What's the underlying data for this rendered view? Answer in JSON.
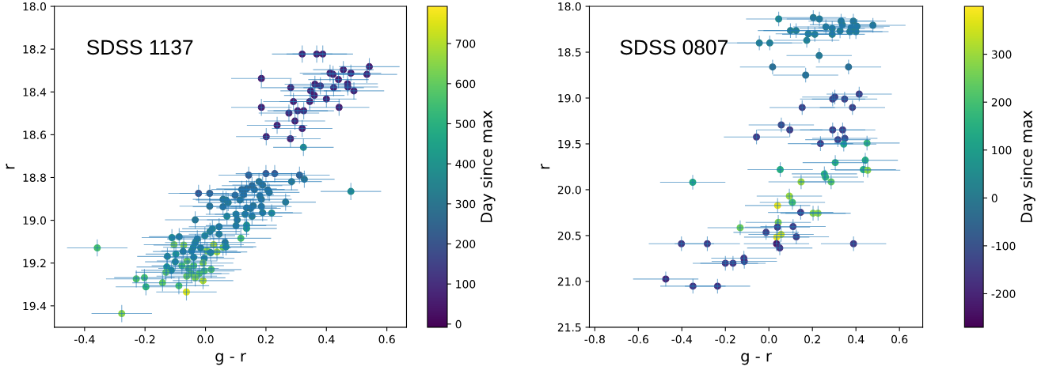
{
  "chart_data": [
    {
      "type": "scatter",
      "xlabel": "g - r",
      "ylabel": "r",
      "clabel": "Day since max",
      "annotations": [
        "SDSS 1137"
      ],
      "marker": "circle",
      "grid": false,
      "xlim": [
        -0.5,
        0.665
      ],
      "ylim": [
        19.5,
        18.0
      ],
      "xticks": [
        -0.4,
        -0.2,
        {
          "value": 0,
          "label": "0.0"
        },
        0.2,
        0.4,
        0.6
      ],
      "yticks": [
        {
          "value": 18,
          "label": "18.0"
        },
        18.2,
        18.4,
        18.6,
        18.8,
        {
          "value": 19,
          "label": "19.0"
        },
        19.2,
        19.4
      ],
      "clim": [
        -8,
        793
      ],
      "cticks": [
        0,
        100,
        200,
        300,
        400,
        500,
        600,
        700
      ],
      "x": [
        0.32,
        0.368,
        0.388,
        0.542,
        0.534,
        0.456,
        0.412,
        0.422,
        0.481,
        0.185,
        0.44,
        0.362,
        0.38,
        0.282,
        0.424,
        0.47,
        0.471,
        0.491,
        0.348,
        0.36,
        0.4,
        0.291,
        0.345,
        0.185,
        0.442,
        0.305,
        0.325,
        0.276,
        0.296,
        0.237,
        0.32,
        0.201,
        0.281,
        0.324,
        0.143,
        0.2,
        0.229,
        0.311,
        0.327,
        0.285,
        0.481,
        0.177,
        0.154,
        0.189,
        0.12,
        0.136,
        0.162,
        0.206,
        0.211,
        -0.023,
        0.014,
        0.098,
        0.126,
        0.18,
        0.058,
        0.068,
        0.075,
        0.114,
        0.185,
        0.265,
        0.014,
        0.058,
        0.136,
        0.149,
        0.158,
        0.185,
        0.189,
        0.219,
        0.101,
        0.131,
        0.154,
        0.071,
        -0.034,
        0.105,
        0.101,
        0.136,
        0.136,
        0.023,
        0.045,
        0.015,
        -0.002,
        0.045,
        0.117,
        -0.027,
        -0.111,
        -0.087,
        -0.034,
        0.065,
        -0.104,
        -0.072,
        0.027,
        -0.04,
        -0.016,
        0.058,
        0.068,
        -0.358,
        -0.074,
        -0.046,
        0.005,
        0.038,
        0.017,
        -0.098,
        -0.126,
        -0.039,
        -0.004,
        -0.1,
        -0.061,
        -0.008,
        -0.128,
        -0.078,
        -0.039,
        -0.113,
        -0.131,
        -0.056,
        -0.004,
        0.019,
        -0.047,
        -0.021,
        -0.062,
        -0.034,
        -0.229,
        -0.202,
        -0.197,
        -0.142,
        -0.088,
        -0.008,
        -0.063,
        -0.277
      ],
      "values": [
        18.223,
        18.223,
        18.223,
        18.282,
        18.318,
        18.296,
        18.312,
        18.318,
        18.312,
        18.337,
        18.342,
        18.364,
        18.372,
        18.38,
        18.38,
        18.362,
        18.377,
        18.395,
        18.395,
        18.416,
        18.433,
        18.445,
        18.445,
        18.472,
        18.472,
        18.488,
        18.488,
        18.499,
        18.536,
        18.556,
        18.571,
        18.609,
        18.619,
        18.659,
        18.789,
        18.782,
        18.782,
        18.789,
        18.808,
        18.819,
        18.865,
        18.819,
        18.838,
        18.835,
        18.856,
        18.853,
        18.856,
        18.858,
        18.87,
        18.874,
        18.874,
        18.883,
        18.88,
        18.886,
        18.902,
        18.905,
        18.917,
        18.905,
        18.902,
        18.915,
        18.934,
        18.937,
        18.942,
        18.944,
        18.932,
        18.936,
        18.964,
        18.966,
        18.972,
        18.972,
        18.981,
        18.981,
        18.998,
        18.998,
        19.025,
        19.023,
        19.038,
        19.04,
        19.03,
        19.052,
        19.072,
        19.065,
        19.084,
        19.087,
        19.081,
        19.077,
        19.104,
        19.104,
        19.114,
        19.116,
        19.114,
        19.126,
        19.129,
        19.126,
        19.124,
        19.129,
        19.146,
        19.143,
        19.143,
        19.148,
        19.151,
        19.158,
        19.169,
        19.173,
        19.178,
        19.194,
        19.19,
        19.2,
        19.218,
        19.212,
        19.212,
        19.234,
        19.243,
        19.225,
        19.237,
        19.23,
        19.249,
        19.249,
        19.261,
        19.269,
        19.274,
        19.268,
        19.311,
        19.292,
        19.306,
        19.282,
        19.335,
        19.436
      ],
      "cvalues": [
        60,
        60,
        60,
        60,
        60,
        60,
        60,
        60,
        60,
        60,
        60,
        60,
        60,
        60,
        60,
        60,
        60,
        60,
        60,
        60,
        60,
        60,
        60,
        60,
        60,
        60,
        60,
        60,
        60,
        60,
        60,
        60,
        60,
        380,
        220,
        200,
        200,
        230,
        300,
        320,
        380,
        300,
        260,
        280,
        260,
        260,
        270,
        280,
        300,
        200,
        230,
        250,
        260,
        290,
        300,
        320,
        320,
        300,
        300,
        320,
        290,
        290,
        300,
        300,
        300,
        300,
        330,
        380,
        330,
        330,
        330,
        370,
        310,
        310,
        330,
        400,
        420,
        360,
        320,
        340,
        370,
        330,
        560,
        330,
        380,
        330,
        350,
        320,
        650,
        660,
        700,
        380,
        350,
        640,
        380,
        560,
        330,
        350,
        650,
        680,
        370,
        420,
        360,
        360,
        360,
        370,
        620,
        650,
        450,
        560,
        580,
        380,
        600,
        600,
        580,
        580,
        600,
        580,
        620,
        640,
        570,
        560,
        520,
        600,
        560,
        700,
        750,
        650
      ],
      "xerrors": [
        0.1,
        0.1,
        0.1,
        0.1,
        0.1,
        0.1,
        0.1,
        0.1,
        0.1,
        0.1,
        0.1,
        0.1,
        0.1,
        0.1,
        0.1,
        0.1,
        0.1,
        0.1,
        0.1,
        0.1,
        0.1,
        0.1,
        0.1,
        0.1,
        0.1,
        0.1,
        0.1,
        0.1,
        0.1,
        0.1,
        0.1,
        0.1,
        0.1,
        0.1,
        0.1,
        0.1,
        0.1,
        0.1,
        0.1,
        0.1,
        0.1,
        0.1,
        0.1,
        0.1,
        0.1,
        0.1,
        0.1,
        0.1,
        0.1,
        0.1,
        0.1,
        0.1,
        0.1,
        0.1,
        0.1,
        0.1,
        0.1,
        0.1,
        0.1,
        0.1,
        0.1,
        0.1,
        0.1,
        0.1,
        0.1,
        0.1,
        0.1,
        0.1,
        0.1,
        0.1,
        0.1,
        0.1,
        0.1,
        0.1,
        0.1,
        0.1,
        0.1,
        0.1,
        0.1,
        0.1,
        0.1,
        0.1,
        0.1,
        0.1,
        0.1,
        0.1,
        0.1,
        0.1,
        0.1,
        0.1,
        0.1,
        0.1,
        0.1,
        0.1,
        0.1,
        0.1,
        0.1,
        0.1,
        0.1,
        0.1,
        0.1,
        0.1,
        0.1,
        0.1,
        0.1,
        0.1,
        0.1,
        0.1,
        0.1,
        0.1,
        0.1,
        0.1,
        0.1,
        0.1,
        0.1,
        0.1,
        0.1,
        0.1,
        0.1,
        0.1,
        0.1,
        0.1,
        0.1,
        0.1,
        0.1,
        0.1,
        0.1,
        0.1
      ],
      "errors": [
        0.04,
        0.04,
        0.04,
        0.04,
        0.04,
        0.04,
        0.04,
        0.04,
        0.04,
        0.04,
        0.04,
        0.04,
        0.04,
        0.04,
        0.04,
        0.04,
        0.04,
        0.04,
        0.04,
        0.04,
        0.04,
        0.04,
        0.04,
        0.04,
        0.04,
        0.04,
        0.04,
        0.04,
        0.04,
        0.04,
        0.04,
        0.04,
        0.04,
        0.04,
        0.04,
        0.04,
        0.04,
        0.04,
        0.04,
        0.04,
        0.04,
        0.04,
        0.04,
        0.04,
        0.04,
        0.04,
        0.04,
        0.04,
        0.04,
        0.04,
        0.04,
        0.04,
        0.04,
        0.04,
        0.04,
        0.04,
        0.04,
        0.04,
        0.04,
        0.04,
        0.04,
        0.04,
        0.04,
        0.04,
        0.04,
        0.04,
        0.04,
        0.04,
        0.04,
        0.04,
        0.04,
        0.04,
        0.04,
        0.04,
        0.04,
        0.04,
        0.04,
        0.04,
        0.04,
        0.04,
        0.04,
        0.04,
        0.04,
        0.04,
        0.04,
        0.04,
        0.04,
        0.04,
        0.04,
        0.04,
        0.04,
        0.04,
        0.04,
        0.04,
        0.04,
        0.04,
        0.04,
        0.04,
        0.04,
        0.04,
        0.04,
        0.04,
        0.04,
        0.04,
        0.04,
        0.04,
        0.04,
        0.04,
        0.04,
        0.04,
        0.04,
        0.04,
        0.04,
        0.04,
        0.04,
        0.04,
        0.04,
        0.04,
        0.04,
        0.04,
        0.04,
        0.04,
        0.04,
        0.04,
        0.04,
        0.04,
        0.04,
        0.04
      ]
    },
    {
      "type": "scatter",
      "xlabel": "g - r",
      "ylabel": "r",
      "clabel": "Day since max",
      "annotations": [
        "SDSS 0807"
      ],
      "marker": "circle",
      "grid": false,
      "xlim": [
        -0.825,
        0.707
      ],
      "ylim": [
        21.5,
        18.0
      ],
      "xticks": [
        -0.8,
        -0.6,
        -0.4,
        -0.2,
        {
          "value": 0,
          "label": "0.0"
        },
        0.2,
        0.4,
        0.6
      ],
      "yticks": [
        {
          "value": 18,
          "label": "18.0"
        },
        18.5,
        {
          "value": 19,
          "label": "19.0"
        },
        19.5,
        {
          "value": 20,
          "label": "20.0"
        },
        20.5,
        {
          "value": 21,
          "label": "21.0"
        },
        21.5
      ],
      "clim": [
        -270,
        400
      ],
      "cticks": [
        -200,
        -100,
        0,
        100,
        200,
        300
      ],
      "x": [
        0.045,
        0.204,
        0.232,
        0.332,
        0.388,
        0.478,
        0.262,
        0.291,
        0.338,
        0.378,
        0.405,
        0.099,
        0.125,
        0.181,
        0.211,
        0.291,
        0.327,
        0.372,
        0.4,
        0.174,
        -0.044,
        0.004,
        0.231,
        0.017,
        0.366,
        0.169,
        0.415,
        0.303,
        0.293,
        0.348,
        0.153,
        0.384,
        0.057,
        0.096,
        -0.057,
        0.293,
        0.339,
        0.317,
        0.349,
        0.237,
        0.344,
        0.451,
        0.305,
        0.443,
        0.052,
        0.434,
        0.454,
        0.255,
        0.26,
        0.286,
        -0.35,
        0.148,
        0.094,
        0.108,
        0.04,
        0.146,
        0.203,
        0.226,
        0.043,
        0.039,
        0.111,
        -0.132,
        -0.013,
        0.056,
        0.036,
        0.126,
        -0.402,
        -0.283,
        0.035,
        0.389,
        0.05,
        -0.115,
        -0.113,
        -0.2,
        -0.165,
        -0.474,
        -0.349,
        -0.236
      ],
      "values": [
        18.138,
        18.123,
        18.138,
        18.161,
        18.161,
        18.207,
        18.224,
        18.241,
        18.201,
        18.233,
        18.218,
        18.264,
        18.264,
        18.299,
        18.305,
        18.305,
        18.267,
        18.276,
        18.276,
        18.371,
        18.399,
        18.399,
        18.537,
        18.661,
        18.661,
        18.75,
        18.957,
        18.989,
        19.011,
        19.011,
        19.103,
        19.103,
        19.293,
        19.347,
        19.425,
        19.347,
        19.347,
        19.454,
        19.44,
        19.497,
        19.503,
        19.491,
        19.704,
        19.678,
        19.781,
        19.781,
        19.787,
        19.827,
        19.862,
        19.914,
        19.919,
        19.914,
        20.069,
        20.138,
        20.172,
        20.247,
        20.256,
        20.256,
        20.356,
        20.408,
        20.402,
        20.414,
        20.465,
        20.488,
        20.517,
        20.514,
        20.589,
        20.589,
        20.589,
        20.589,
        20.635,
        20.747,
        20.781,
        20.802,
        20.802,
        20.974,
        21.052,
        21.052
      ],
      "cvalues": [
        50,
        0,
        10,
        10,
        0,
        0,
        10,
        20,
        10,
        10,
        10,
        20,
        20,
        20,
        20,
        20,
        20,
        20,
        20,
        30,
        20,
        20,
        0,
        -30,
        -30,
        -20,
        -150,
        -150,
        -150,
        -140,
        -140,
        -140,
        -120,
        -150,
        -160,
        -150,
        -150,
        -150,
        -130,
        -160,
        130,
        180,
        160,
        150,
        150,
        150,
        280,
        160,
        170,
        230,
        130,
        300,
        300,
        200,
        380,
        -150,
        280,
        280,
        270,
        -150,
        -150,
        250,
        -150,
        350,
        380,
        -150,
        -160,
        -160,
        -230,
        -160,
        -170,
        -170,
        -170,
        -170,
        -170,
        -200,
        -170,
        -180
      ],
      "xerrors": [
        0.15,
        0.15,
        0.15,
        0.15,
        0.15,
        0.15,
        0.15,
        0.15,
        0.15,
        0.15,
        0.15,
        0.15,
        0.15,
        0.15,
        0.15,
        0.15,
        0.15,
        0.15,
        0.15,
        0.15,
        0.15,
        0.15,
        0.15,
        0.15,
        0.15,
        0.15,
        0.15,
        0.15,
        0.15,
        0.15,
        0.15,
        0.15,
        0.15,
        0.15,
        0.15,
        0.15,
        0.15,
        0.15,
        0.15,
        0.15,
        0.15,
        0.15,
        0.15,
        0.15,
        0.15,
        0.15,
        0.15,
        0.15,
        0.15,
        0.15,
        0.15,
        0.15,
        0.15,
        0.15,
        0.15,
        0.15,
        0.15,
        0.15,
        0.15,
        0.15,
        0.15,
        0.15,
        0.15,
        0.15,
        0.15,
        0.15,
        0.15,
        0.15,
        0.15,
        0.15,
        0.15,
        0.15,
        0.15,
        0.15,
        0.15,
        0.15,
        0.15,
        0.15
      ],
      "errors": [
        0.08,
        0.08,
        0.08,
        0.08,
        0.08,
        0.08,
        0.08,
        0.08,
        0.08,
        0.08,
        0.08,
        0.08,
        0.08,
        0.08,
        0.08,
        0.08,
        0.08,
        0.08,
        0.08,
        0.08,
        0.08,
        0.08,
        0.08,
        0.08,
        0.08,
        0.08,
        0.08,
        0.08,
        0.08,
        0.08,
        0.08,
        0.08,
        0.08,
        0.08,
        0.08,
        0.08,
        0.08,
        0.08,
        0.08,
        0.08,
        0.08,
        0.08,
        0.08,
        0.08,
        0.08,
        0.08,
        0.08,
        0.08,
        0.08,
        0.08,
        0.08,
        0.08,
        0.08,
        0.08,
        0.08,
        0.08,
        0.08,
        0.08,
        0.08,
        0.08,
        0.08,
        0.08,
        0.08,
        0.08,
        0.08,
        0.08,
        0.08,
        0.08,
        0.08,
        0.08,
        0.08,
        0.08,
        0.08,
        0.08,
        0.08,
        0.08,
        0.08,
        0.08
      ]
    }
  ]
}
